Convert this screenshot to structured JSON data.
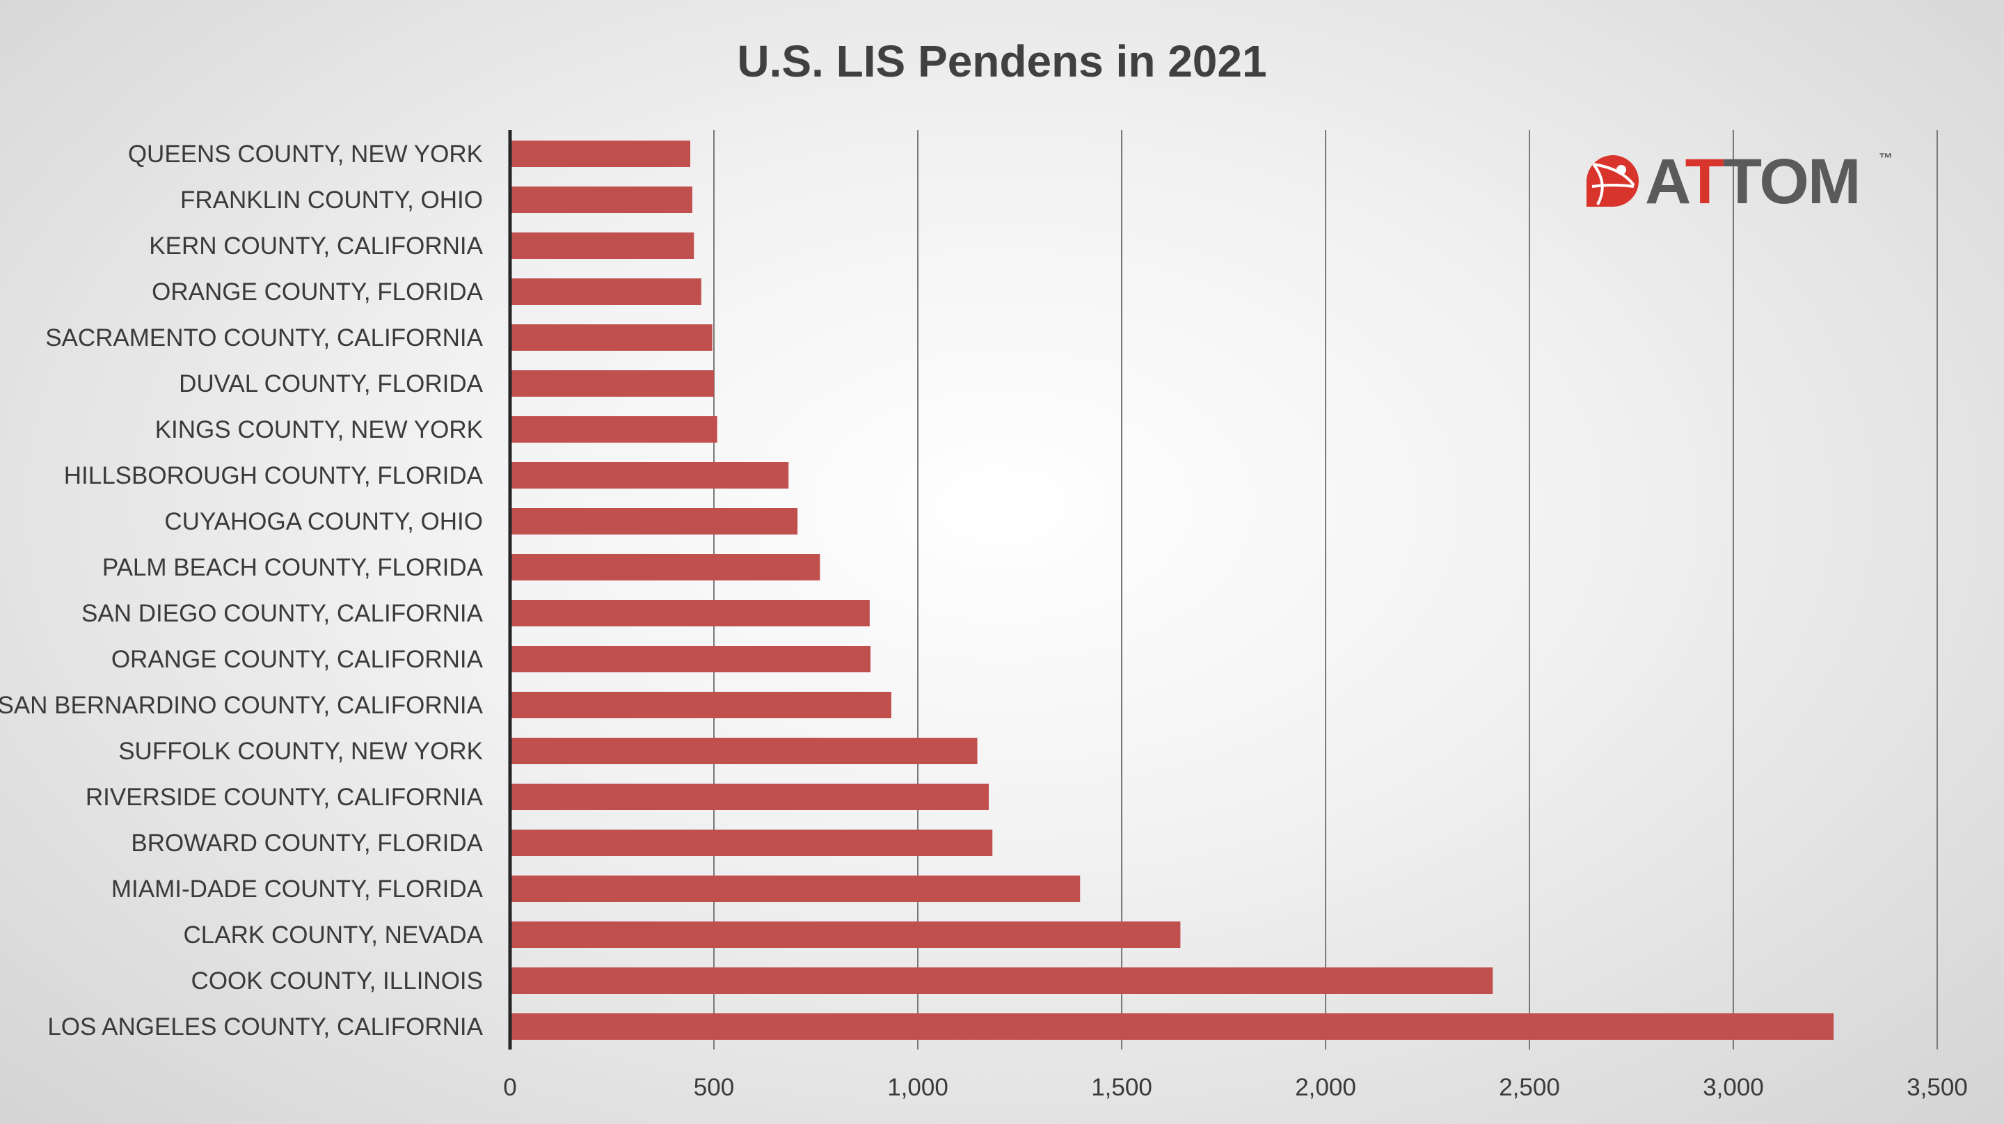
{
  "chart_data": {
    "type": "bar",
    "orientation": "horizontal",
    "title": "U.S. LIS Pendens in 2021",
    "xlabel": "",
    "ylabel": "",
    "xlim": [
      0,
      3500
    ],
    "grid": true,
    "categories": [
      "QUEENS COUNTY, NEW YORK",
      "FRANKLIN COUNTY, OHIO",
      "KERN COUNTY, CALIFORNIA",
      "ORANGE COUNTY, FLORIDA",
      "SACRAMENTO COUNTY, CALIFORNIA",
      "DUVAL COUNTY, FLORIDA",
      "KINGS COUNTY, NEW YORK",
      "HILLSBOROUGH COUNTY, FLORIDA",
      "CUYAHOGA COUNTY, OHIO",
      "PALM BEACH COUNTY, FLORIDA",
      "SAN DIEGO COUNTY, CALIFORNIA",
      "ORANGE COUNTY, CALIFORNIA",
      "SAN BERNARDINO COUNTY, CALIFORNIA",
      "SUFFOLK COUNTY, NEW YORK",
      "RIVERSIDE COUNTY, CALIFORNIA",
      "BROWARD COUNTY, FLORIDA",
      "MIAMI-DADE COUNTY, FLORIDA",
      "CLARK COUNTY, NEVADA",
      "COOK COUNTY, ILLINOIS",
      "LOS ANGELES COUNTY, CALIFORNIA"
    ],
    "values": [
      442,
      447,
      451,
      469,
      496,
      500,
      508,
      683,
      705,
      760,
      882,
      884,
      935,
      1146,
      1174,
      1183,
      1398,
      1644,
      2410,
      3246
    ],
    "ticks": [
      "0",
      "500",
      "1,000",
      "1,500",
      "2,000",
      "2,500",
      "3,000",
      "3,500"
    ],
    "tick_values": [
      0,
      500,
      1000,
      1500,
      2000,
      2500,
      3000,
      3500
    ]
  },
  "logo": {
    "text_start": "A",
    "text_red": "T",
    "text_end": "TOM",
    "trademark": "™"
  },
  "colors": {
    "bar": "#c0504d",
    "logo_red": "#d9342b",
    "logo_gray": "#5a5a5a"
  }
}
